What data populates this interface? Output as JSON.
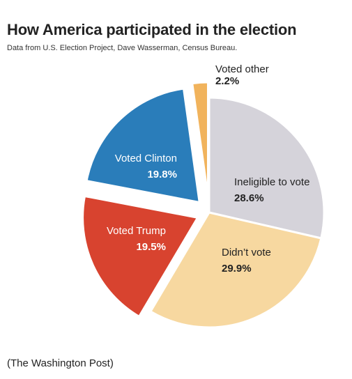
{
  "title": "How America participated in the election",
  "subtitle": "Data from U.S. Election Project, Dave Wasserman, Census Bureau.",
  "credit": "(The Washington Post)",
  "chart_data": {
    "type": "pie",
    "title": "How America participated in the election",
    "slices": [
      {
        "label": "Ineligible to vote",
        "value": 28.6,
        "value_label": "28.6%",
        "color": "#d5d3da",
        "text_color": "#222222"
      },
      {
        "label": "Didn’t vote",
        "value": 29.9,
        "value_label": "29.9%",
        "color": "#f7d8a0",
        "text_color": "#222222"
      },
      {
        "label": "Voted Trump",
        "value": 19.5,
        "value_label": "19.5%",
        "color": "#d8432f",
        "text_color": "#ffffff"
      },
      {
        "label": "Voted Clinton",
        "value": 19.8,
        "value_label": "19.8%",
        "color": "#2a7dba",
        "text_color": "#ffffff"
      },
      {
        "label": "Voted other",
        "value": 2.2,
        "value_label": "2.2%",
        "color": "#f1b35c",
        "text_color": "#222222"
      }
    ]
  }
}
